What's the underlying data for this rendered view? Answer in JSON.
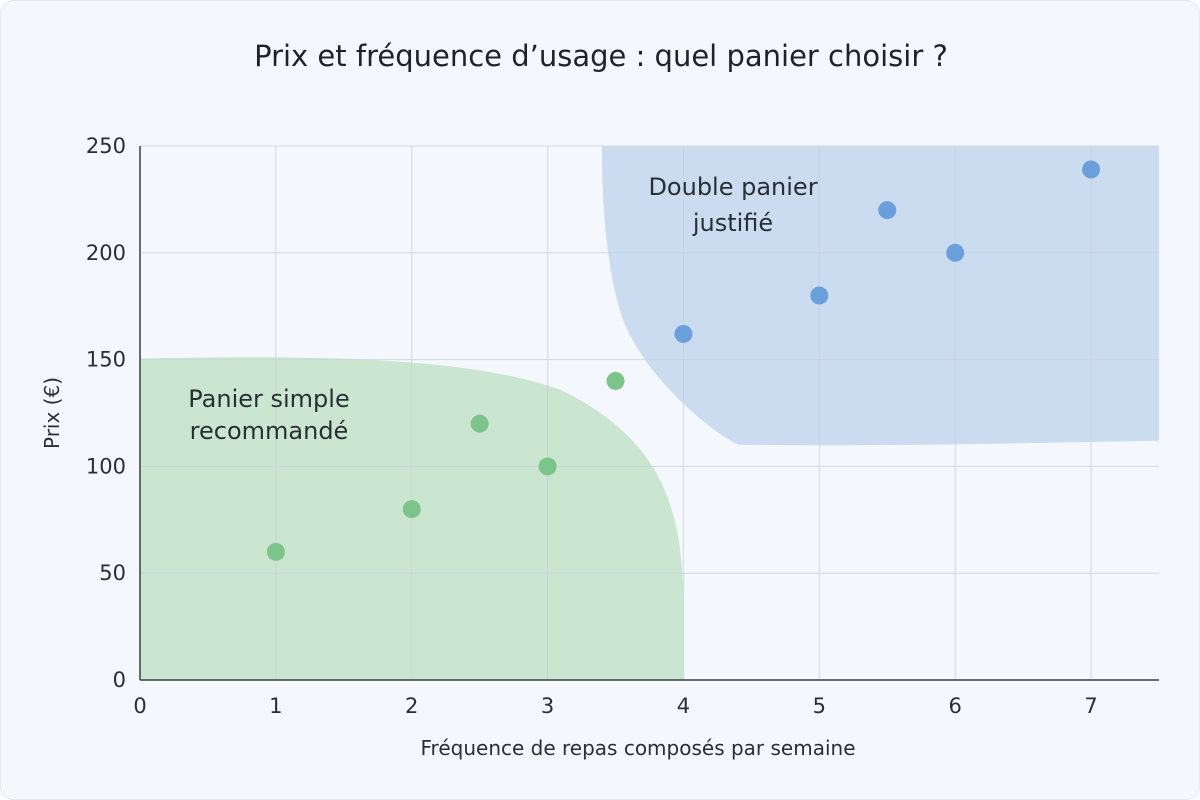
{
  "chart_data": {
    "type": "scatter",
    "title": "Prix et fréquence d’usage : quel panier choisir ?",
    "xlabel": "Fréquence de repas composés par semaine",
    "ylabel": "Prix (€)",
    "xlim": [
      0,
      7.5
    ],
    "ylim": [
      0,
      250
    ],
    "x_ticks": [
      "0",
      "1",
      "2",
      "3",
      "4",
      "5",
      "6",
      "7"
    ],
    "y_ticks": [
      "0",
      "50",
      "100",
      "150",
      "200",
      "250"
    ],
    "grid": true,
    "regions": [
      {
        "label_lines": [
          "Panier simple",
          "recommandé"
        ],
        "color": "#8fcf94",
        "x_range": [
          0,
          4
        ],
        "y_range": [
          0,
          150
        ]
      },
      {
        "label_lines": [
          "Double panier",
          "justifié"
        ],
        "color": "#a9c6ea",
        "x_range": [
          3.4,
          7.5
        ],
        "y_range": [
          112,
          250
        ]
      }
    ],
    "series": [
      {
        "color": "#7cc48a",
        "points": [
          {
            "x": 1,
            "y": 60
          },
          {
            "x": 2,
            "y": 80
          },
          {
            "x": 2.5,
            "y": 120
          },
          {
            "x": 3,
            "y": 100
          },
          {
            "x": 3.5,
            "y": 140
          }
        ]
      },
      {
        "color": "#6a9fdc",
        "points": [
          {
            "x": 4,
            "y": 162
          },
          {
            "x": 5,
            "y": 180
          },
          {
            "x": 5.5,
            "y": 220
          },
          {
            "x": 6,
            "y": 200
          },
          {
            "x": 7,
            "y": 239
          }
        ]
      }
    ]
  }
}
